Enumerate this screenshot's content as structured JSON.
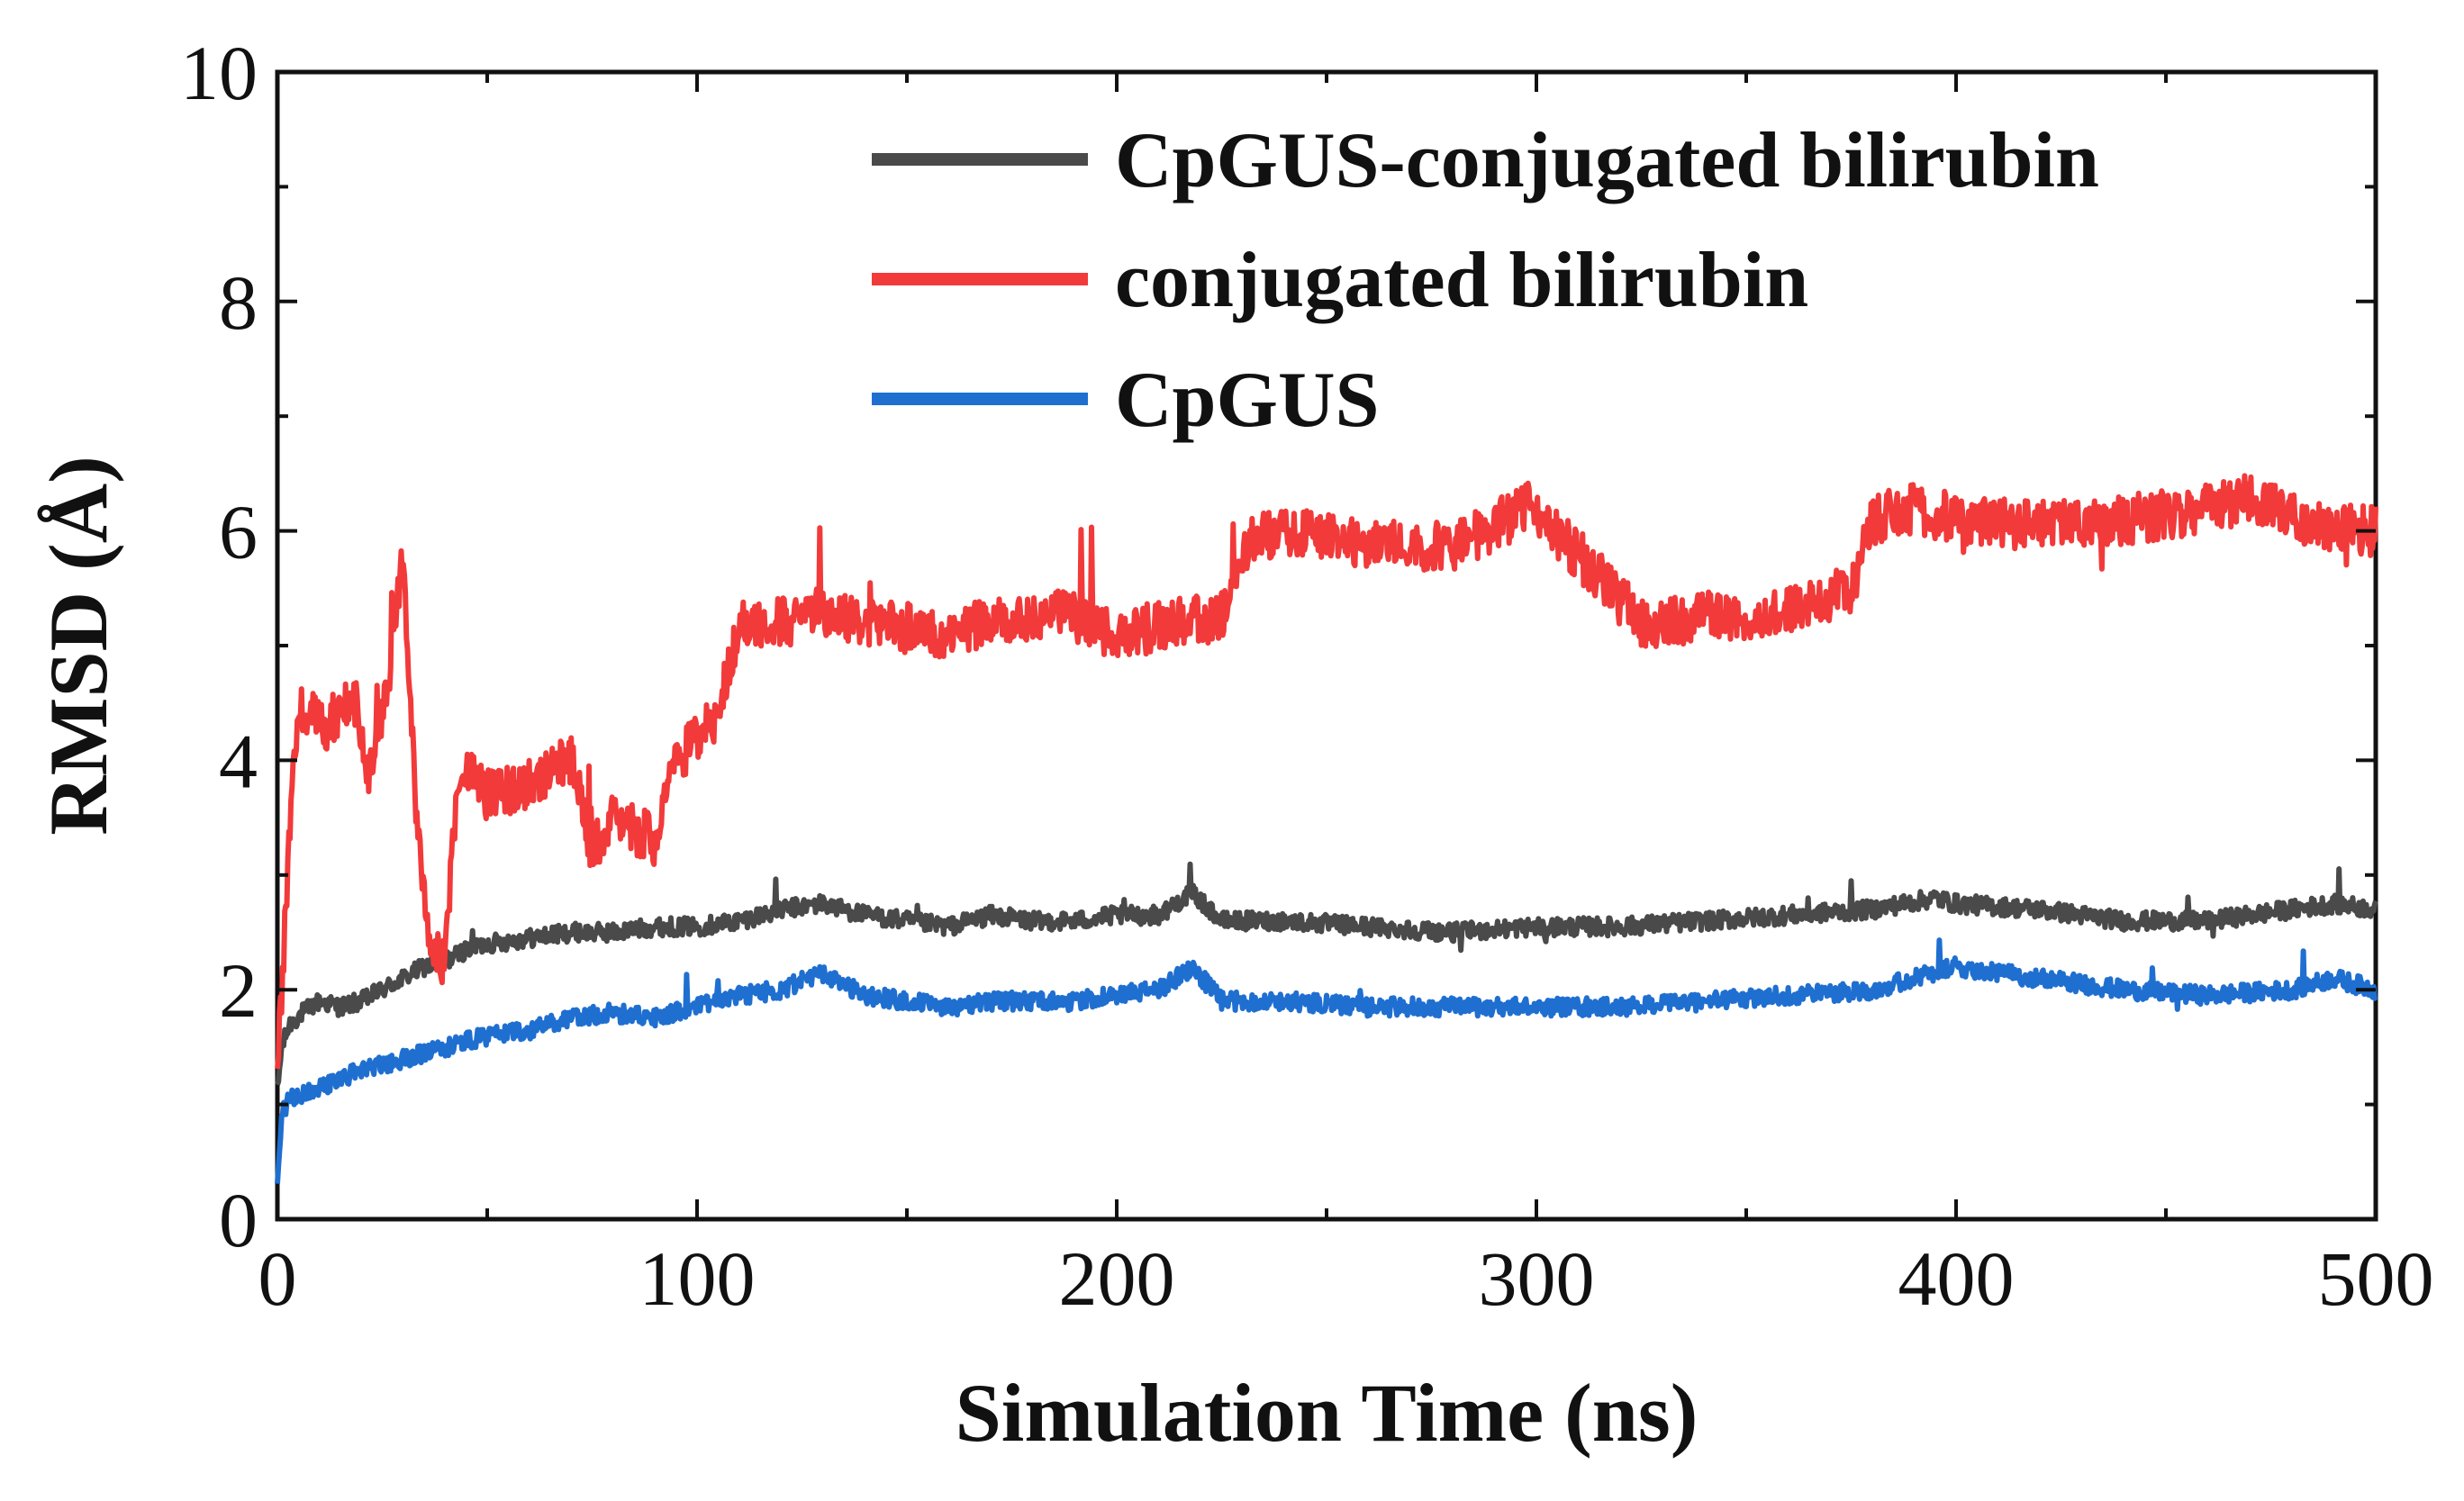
{
  "chart_data": {
    "type": "line",
    "title": "",
    "xlabel": "Simulation Time (ns)",
    "ylabel": "RMSD (Å)",
    "xlim": [
      0,
      500
    ],
    "ylim": [
      0,
      10
    ],
    "xticks": [
      0,
      100,
      200,
      300,
      400,
      500
    ],
    "yticks": [
      0,
      2,
      4,
      6,
      8,
      10
    ],
    "xtick_labels": [
      "0",
      "100",
      "200",
      "300",
      "400",
      "500"
    ],
    "ytick_labels": [
      "0",
      "2",
      "4",
      "6",
      "8",
      "10"
    ],
    "grid": false,
    "legend_position": "top-right",
    "series": [
      {
        "name": "CpGUS-conjugated bilirubin",
        "color": "#4a4a4a",
        "x": [
          0,
          1,
          3,
          6,
          10,
          15,
          20,
          25,
          30,
          35,
          40,
          45,
          50,
          60,
          70,
          80,
          90,
          100,
          110,
          120,
          130,
          140,
          150,
          160,
          170,
          180,
          190,
          200,
          210,
          218,
          225,
          240,
          260,
          280,
          300,
          320,
          340,
          360,
          380,
          395,
          400,
          420,
          440,
          460,
          480,
          490,
          500
        ],
        "y": [
          1.1,
          1.5,
          1.7,
          1.8,
          1.9,
          1.85,
          1.9,
          2.0,
          2.1,
          2.2,
          2.25,
          2.35,
          2.4,
          2.45,
          2.5,
          2.5,
          2.55,
          2.55,
          2.6,
          2.7,
          2.75,
          2.65,
          2.6,
          2.55,
          2.65,
          2.6,
          2.6,
          2.65,
          2.65,
          2.85,
          2.6,
          2.6,
          2.55,
          2.5,
          2.55,
          2.55,
          2.6,
          2.65,
          2.7,
          2.8,
          2.75,
          2.7,
          2.6,
          2.6,
          2.7,
          2.75,
          2.7
        ]
      },
      {
        "name": "conjugated bilirubin",
        "color": "#f23a3a",
        "x": [
          0,
          1,
          3,
          5,
          8,
          12,
          18,
          22,
          26,
          30,
          33,
          36,
          40,
          42,
          45,
          50,
          60,
          70,
          75,
          80,
          85,
          90,
          95,
          100,
          105,
          110,
          120,
          130,
          140,
          150,
          160,
          170,
          185,
          200,
          215,
          225,
          232,
          240,
          260,
          280,
          298,
          310,
          315,
          325,
          340,
          360,
          375,
          380,
          390,
          400,
          420,
          440,
          460,
          470,
          485,
          500
        ],
        "y": [
          1.2,
          2.0,
          3.5,
          4.5,
          4.4,
          4.3,
          4.6,
          3.9,
          4.6,
          5.8,
          3.5,
          2.5,
          2.2,
          3.5,
          3.9,
          3.7,
          3.8,
          4.0,
          3.2,
          3.5,
          3.4,
          3.3,
          4.0,
          4.2,
          4.4,
          5.2,
          5.2,
          5.3,
          5.2,
          5.15,
          5.1,
          5.2,
          5.3,
          5.1,
          5.2,
          5.25,
          5.9,
          6.0,
          5.9,
          5.85,
          6.2,
          5.8,
          5.6,
          5.2,
          5.25,
          5.3,
          5.5,
          6.1,
          6.2,
          6.1,
          6.05,
          6.1,
          6.2,
          6.3,
          6.05,
          6.0
        ]
      },
      {
        "name": "CpGUS",
        "color": "#1f6fd1",
        "x": [
          0,
          1,
          3,
          6,
          10,
          20,
          30,
          40,
          50,
          60,
          70,
          80,
          90,
          100,
          110,
          120,
          130,
          140,
          150,
          160,
          170,
          180,
          190,
          200,
          210,
          218,
          225,
          240,
          260,
          280,
          300,
          320,
          340,
          360,
          380,
          395,
          400,
          420,
          440,
          460,
          480,
          490,
          500
        ],
        "y": [
          0.3,
          0.9,
          1.05,
          1.1,
          1.15,
          1.3,
          1.4,
          1.5,
          1.6,
          1.65,
          1.75,
          1.8,
          1.75,
          1.85,
          1.95,
          2.0,
          2.15,
          1.95,
          1.9,
          1.85,
          1.9,
          1.9,
          1.9,
          1.95,
          2.0,
          2.2,
          1.9,
          1.9,
          1.85,
          1.85,
          1.85,
          1.85,
          1.9,
          1.95,
          2.0,
          2.15,
          2.2,
          2.1,
          2.0,
          1.95,
          2.0,
          2.1,
          2.0
        ]
      }
    ]
  }
}
